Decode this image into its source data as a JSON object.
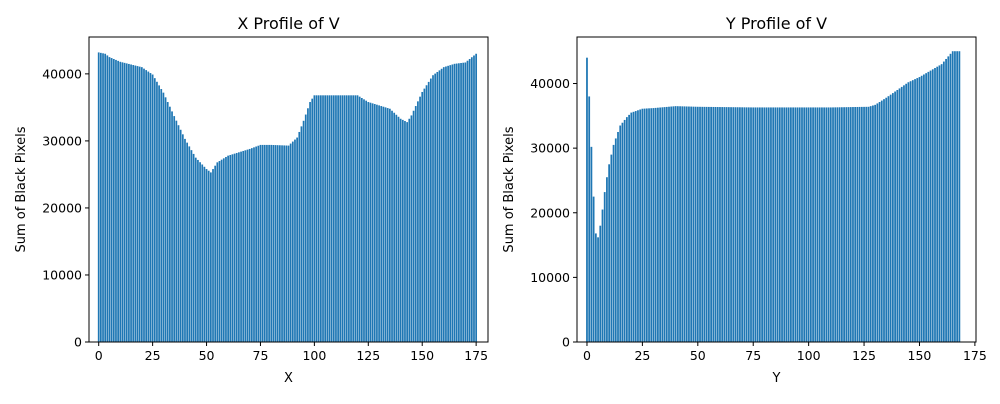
{
  "chart_data": [
    {
      "type": "bar",
      "title": "X Profile of V",
      "xlabel": "X",
      "ylabel": "Sum of Black Pixels",
      "xlim": [
        -4.5,
        180.5
      ],
      "ylim": [
        0,
        45500
      ],
      "xticks": [
        0,
        25,
        50,
        75,
        100,
        125,
        150,
        175
      ],
      "yticks": [
        0,
        10000,
        20000,
        30000,
        40000
      ],
      "grid": false,
      "legend": "none",
      "color": "#1f77b4",
      "anchors": [
        [
          0,
          43200
        ],
        [
          3,
          43000
        ],
        [
          5,
          42500
        ],
        [
          10,
          41800
        ],
        [
          20,
          41000
        ],
        [
          25,
          39900
        ],
        [
          30,
          37200
        ],
        [
          35,
          33700
        ],
        [
          40,
          30300
        ],
        [
          45,
          27500
        ],
        [
          50,
          25800
        ],
        [
          52,
          25300
        ],
        [
          55,
          26800
        ],
        [
          60,
          27800
        ],
        [
          70,
          28800
        ],
        [
          75,
          29400
        ],
        [
          80,
          29400
        ],
        [
          88,
          29300
        ],
        [
          92,
          30500
        ],
        [
          95,
          33000
        ],
        [
          98,
          35800
        ],
        [
          100,
          36800
        ],
        [
          110,
          36800
        ],
        [
          120,
          36800
        ],
        [
          125,
          35800
        ],
        [
          130,
          35300
        ],
        [
          135,
          34800
        ],
        [
          140,
          33300
        ],
        [
          143,
          32800
        ],
        [
          145,
          33800
        ],
        [
          150,
          37300
        ],
        [
          155,
          39800
        ],
        [
          160,
          41000
        ],
        [
          165,
          41500
        ],
        [
          170,
          41700
        ],
        [
          175,
          43000
        ]
      ],
      "x": [],
      "values": []
    },
    {
      "type": "bar",
      "title": "Y Profile of V",
      "xlabel": "Y",
      "ylabel": "Sum of Black Pixels",
      "xlim": [
        -4.5,
        175.5
      ],
      "ylim": [
        0,
        47200
      ],
      "xticks": [
        0,
        25,
        50,
        75,
        100,
        125,
        150,
        175
      ],
      "yticks": [
        0,
        10000,
        20000,
        30000,
        40000
      ],
      "grid": false,
      "legend": "none",
      "color": "#1f77b4",
      "anchors": [
        [
          0,
          44000
        ],
        [
          1,
          38000
        ],
        [
          2,
          30200
        ],
        [
          3,
          22500
        ],
        [
          4,
          16800
        ],
        [
          5,
          16200
        ],
        [
          6,
          18000
        ],
        [
          7,
          20500
        ],
        [
          8,
          23200
        ],
        [
          9,
          25500
        ],
        [
          10,
          27500
        ],
        [
          12,
          30500
        ],
        [
          15,
          33500
        ],
        [
          18,
          34800
        ],
        [
          20,
          35500
        ],
        [
          25,
          36100
        ],
        [
          30,
          36200
        ],
        [
          40,
          36500
        ],
        [
          50,
          36400
        ],
        [
          75,
          36300
        ],
        [
          100,
          36300
        ],
        [
          110,
          36300
        ],
        [
          127,
          36400
        ],
        [
          130,
          36700
        ],
        [
          135,
          37800
        ],
        [
          140,
          39000
        ],
        [
          145,
          40200
        ],
        [
          150,
          41000
        ],
        [
          155,
          42000
        ],
        [
          160,
          43000
        ],
        [
          165,
          45000
        ],
        [
          168,
          45000
        ]
      ],
      "x": [],
      "values": []
    }
  ]
}
